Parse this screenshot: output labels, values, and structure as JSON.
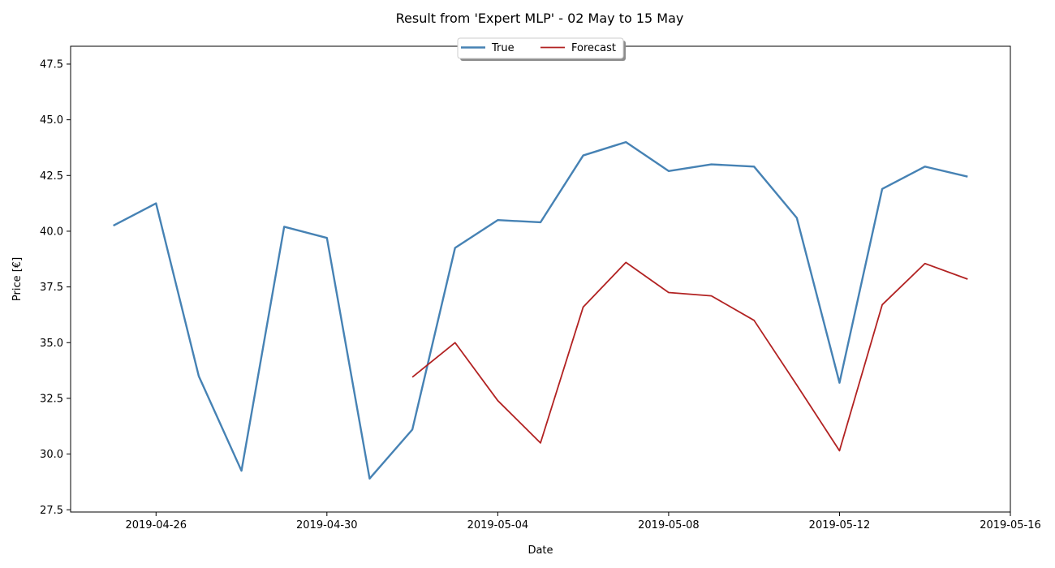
{
  "chart_data": {
    "type": "line",
    "title": "Result from 'Expert MLP' - 02 May to 15 May",
    "xlabel": "Date",
    "ylabel": "Price [€]",
    "xlim": [
      "2019-04-24",
      "2019-05-16"
    ],
    "ylim": [
      27.4,
      48.3
    ],
    "x_ticks": [
      "2019-04-26",
      "2019-04-30",
      "2019-05-04",
      "2019-05-08",
      "2019-05-12",
      "2019-05-16"
    ],
    "y_ticks": [
      "27.5",
      "30.0",
      "32.5",
      "35.0",
      "37.5",
      "40.0",
      "42.5",
      "45.0",
      "47.5"
    ],
    "grid": false,
    "legend_placement": "top-center",
    "series": [
      {
        "name": "True",
        "color": "#4682b4",
        "x": [
          "2019-04-25",
          "2019-04-26",
          "2019-04-27",
          "2019-04-28",
          "2019-04-29",
          "2019-04-30",
          "2019-05-01",
          "2019-05-02",
          "2019-05-03",
          "2019-05-04",
          "2019-05-05",
          "2019-05-06",
          "2019-05-07",
          "2019-05-08",
          "2019-05-09",
          "2019-05-10",
          "2019-05-11",
          "2019-05-12",
          "2019-05-13",
          "2019-05-14",
          "2019-05-15"
        ],
        "values": [
          40.25,
          41.25,
          33.5,
          29.25,
          40.2,
          39.7,
          28.9,
          31.1,
          39.25,
          40.5,
          40.4,
          43.4,
          44.0,
          42.7,
          43.0,
          42.9,
          40.6,
          33.2,
          41.9,
          42.9,
          42.45
        ]
      },
      {
        "name": "Forecast",
        "color": "#b22222",
        "x": [
          "2019-05-02",
          "2019-05-03",
          "2019-05-04",
          "2019-05-05",
          "2019-05-06",
          "2019-05-07",
          "2019-05-08",
          "2019-05-09",
          "2019-05-10",
          "2019-05-11",
          "2019-05-12",
          "2019-05-13",
          "2019-05-14",
          "2019-05-15"
        ],
        "values": [
          33.45,
          35.0,
          32.4,
          30.5,
          36.6,
          38.6,
          37.25,
          37.1,
          36.0,
          33.1,
          30.15,
          36.7,
          38.55,
          37.85
        ]
      }
    ]
  }
}
